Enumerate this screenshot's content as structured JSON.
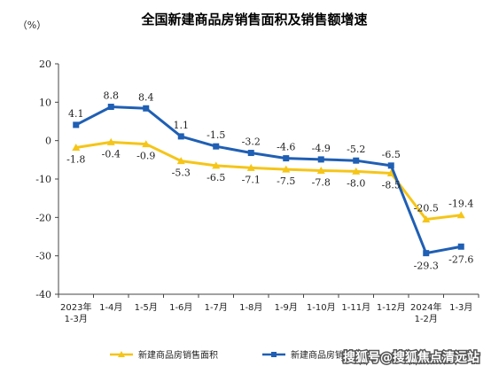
{
  "chart_data": {
    "type": "line",
    "title": "全国新建商品房销售面积及销售额增速",
    "unit_label": "（%）",
    "ylim": [
      -40,
      20
    ],
    "yticks": [
      20,
      10,
      0,
      -10,
      -20,
      -30,
      -40
    ],
    "categories": [
      [
        "2023年",
        "1-3月"
      ],
      [
        "1-4月"
      ],
      [
        "1-5月"
      ],
      [
        "1-6月"
      ],
      [
        "1-7月"
      ],
      [
        "1-8月"
      ],
      [
        "1-9月"
      ],
      [
        "1-10月"
      ],
      [
        "1-11月"
      ],
      [
        "1-12月"
      ],
      [
        "2024年",
        "1-2月"
      ],
      [
        "1-3月"
      ]
    ],
    "series": [
      {
        "name": "新建商品房销售面积",
        "color": "#f5c518",
        "marker": "triangle",
        "values": [
          -1.8,
          -0.4,
          -0.9,
          -5.3,
          -6.5,
          -7.1,
          -7.5,
          -7.8,
          -8.0,
          -8.5,
          -20.5,
          -19.4
        ],
        "labels": [
          "-1.8",
          "-0.4",
          "-0.9",
          "-5.3",
          "-6.5",
          "-7.1",
          "-7.5",
          "-7.8",
          "-8.0",
          "-8.5",
          "-20.5",
          "-19.4"
        ]
      },
      {
        "name": "新建商品房销售额",
        "color": "#1f5fb4",
        "marker": "square",
        "values": [
          4.1,
          8.8,
          8.4,
          1.1,
          -1.5,
          -3.2,
          -4.6,
          -4.9,
          -5.2,
          -6.5,
          -29.3,
          -27.6
        ],
        "labels": [
          "4.1",
          "8.8",
          "8.4",
          "1.1",
          "-1.5",
          "-3.2",
          "-4.6",
          "-4.9",
          "-5.2",
          "-6.5",
          "-29.3",
          "-27.6"
        ]
      }
    ],
    "legend": [
      "新建商品房销售面积",
      "新建商品房销售额"
    ],
    "legend_position": "bottom"
  },
  "watermark": "搜狐号@搜狐焦点清远站"
}
